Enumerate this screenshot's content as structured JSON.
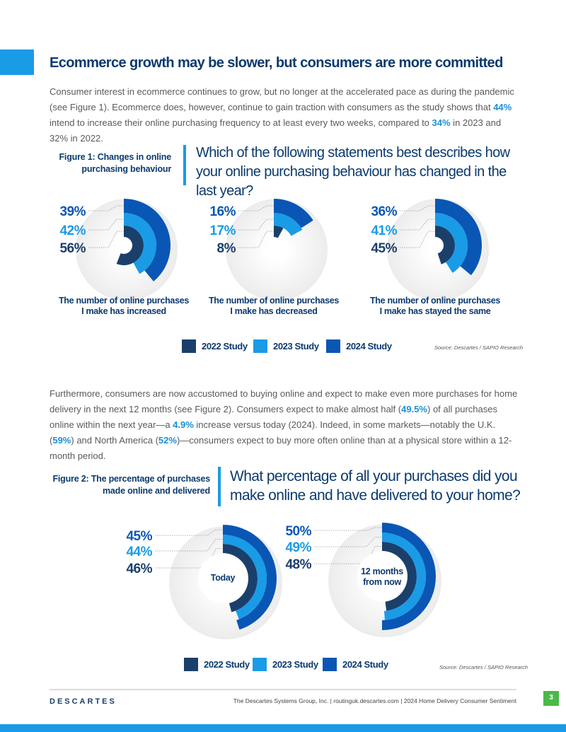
{
  "title": "Ecommerce growth may be slower, but consumers are more committed",
  "paragraphs": [
    [
      "Consumer interest in ecommerce continues to grow, but no longer at the accelerated pace as during the pandemic (see Figure 1). Ecommerce does, however, continue to gain traction with consumers as the study shows that ",
      "44%",
      " intend to increase their online purchasing frequency to at least every two weeks, compared to ",
      "34%",
      " in 2023 and 32% in 2022."
    ],
    [
      "Furthermore, consumers are now accustomed to buying online and expect to make even more purchases for home delivery in the next 12 months (see Figure 2). Consumers expect to make almost half (",
      "49.5%",
      ") of all purchases online within the next year—a ",
      "4.9%",
      " increase versus today (2024). Indeed, in some markets—notably the U.K. (",
      "59%",
      ") and North America (",
      "52%",
      ")—consumers expect to buy more often online than at a physical store within a 12-month period."
    ]
  ],
  "chart_data": [
    {
      "type": "radial_bar",
      "title": "Figure 1: Changes in online purchasing behaviour",
      "subtitle": "Which of the following statements best describes how your online purchasing behaviour has changed in the last year?",
      "categories": [
        "The number of online purchases I make has increased",
        "The number of online purchases I make has decreased",
        "The number of online purchases I make has stayed the same"
      ],
      "series": [
        {
          "name": "2022 Study",
          "color": "#1b3f6b",
          "values": [
            56,
            8,
            45
          ],
          "value_labels": [
            "56%",
            "8%",
            "45%"
          ]
        },
        {
          "name": "2023 Study",
          "color": "#1a9be6",
          "values": [
            42,
            17,
            41
          ],
          "value_labels": [
            "42%",
            "17%",
            "41%"
          ]
        },
        {
          "name": "2024 Study",
          "color": "#0a56b4",
          "values": [
            39,
            16,
            36
          ],
          "value_labels": [
            "39%",
            "16%",
            "36%"
          ]
        }
      ],
      "ylim": [
        0,
        100
      ],
      "source": "Source: Descartes / SAPIO Research"
    },
    {
      "type": "radial_bar",
      "title": "Figure 2: The percentage of purchases made online and delivered",
      "subtitle": "What percentage of all your purchases did you make online and have delivered to your home?",
      "categories": [
        "Today",
        "12 months from now"
      ],
      "series": [
        {
          "name": "2022 Study",
          "color": "#1b3f6b",
          "values": [
            46,
            48
          ],
          "value_labels": [
            "46%",
            "48%"
          ]
        },
        {
          "name": "2023 Study",
          "color": "#1a9be6",
          "values": [
            44,
            49
          ],
          "value_labels": [
            "44%",
            "49%"
          ]
        },
        {
          "name": "2024 Study",
          "color": "#0a56b4",
          "values": [
            45,
            50
          ],
          "value_labels": [
            "45%",
            "50%"
          ]
        }
      ],
      "ylim": [
        0,
        100
      ],
      "source": "Source: Descartes / SAPIO Research"
    }
  ],
  "footer": {
    "logo": "DESCARTES",
    "text": "The Descartes Systems Group, Inc.  |  routinguk.descartes.com  |  2024 Home Delivery Consumer Sentiment",
    "page": "3"
  }
}
